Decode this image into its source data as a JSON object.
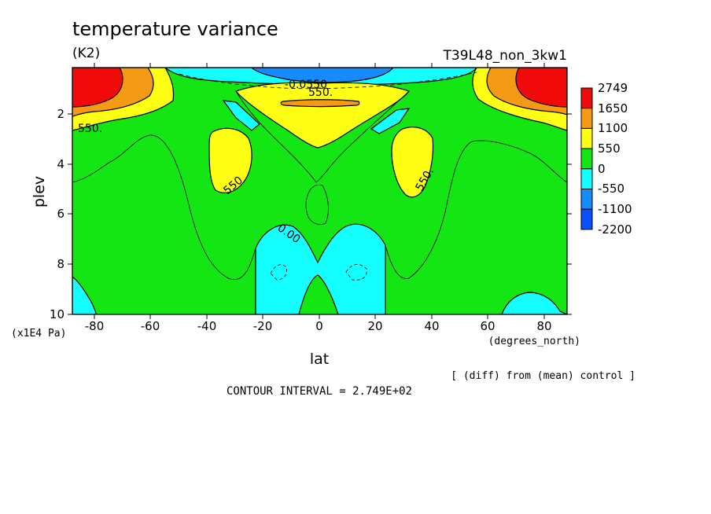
{
  "chart_data": {
    "type": "heatmap",
    "subtype": "filled-contour",
    "title": "temperature variance",
    "units": "(K2)",
    "run_label": "T39L48_non_3kw1",
    "xlabel": "lat",
    "x_units": "(degrees_north)",
    "ylabel": "plev",
    "y_units": "(x1E4 Pa)",
    "xlim": [
      -88,
      88
    ],
    "ylim": [
      10,
      0.1
    ],
    "x_ticks": [
      -80,
      -60,
      -40,
      -20,
      0,
      20,
      40,
      60,
      80
    ],
    "x_tick_labels": [
      "-80",
      "-60",
      "-40",
      "-20",
      "0",
      "20",
      "40",
      "60",
      "80"
    ],
    "y_ticks": [
      2,
      4,
      6,
      8,
      10
    ],
    "y_tick_labels": [
      "2",
      "4",
      "6",
      "8",
      "10"
    ],
    "legend": {
      "position": "right",
      "levels": [
        "2749",
        "1650",
        "1100",
        "550",
        "0",
        "-550",
        "-1100",
        "-2200"
      ],
      "colors": [
        "#f00a0a",
        "#f59a14",
        "#ffff14",
        "#14e614",
        "#14ffff",
        "#148cff",
        "#0a50ff"
      ]
    },
    "contour_interval": "CONTOUR INTERVAL = 2.749E+02",
    "footnote": "[ (diff) from (mean) control ]",
    "contour_labels": [
      {
        "text": "550.",
        "lat": -85,
        "plev": 2.6
      },
      {
        "text": "550",
        "lat": -31,
        "plev": 4.8
      },
      {
        "text": "0.00",
        "lat": -11,
        "plev": 7.2
      },
      {
        "text": "550.",
        "lat": 38,
        "plev": 4.5
      },
      {
        "text": "-0.0550",
        "lat": 0,
        "plev": 0.55
      },
      {
        "text": "550.",
        "lat": 0,
        "plev": 0.95
      }
    ]
  }
}
